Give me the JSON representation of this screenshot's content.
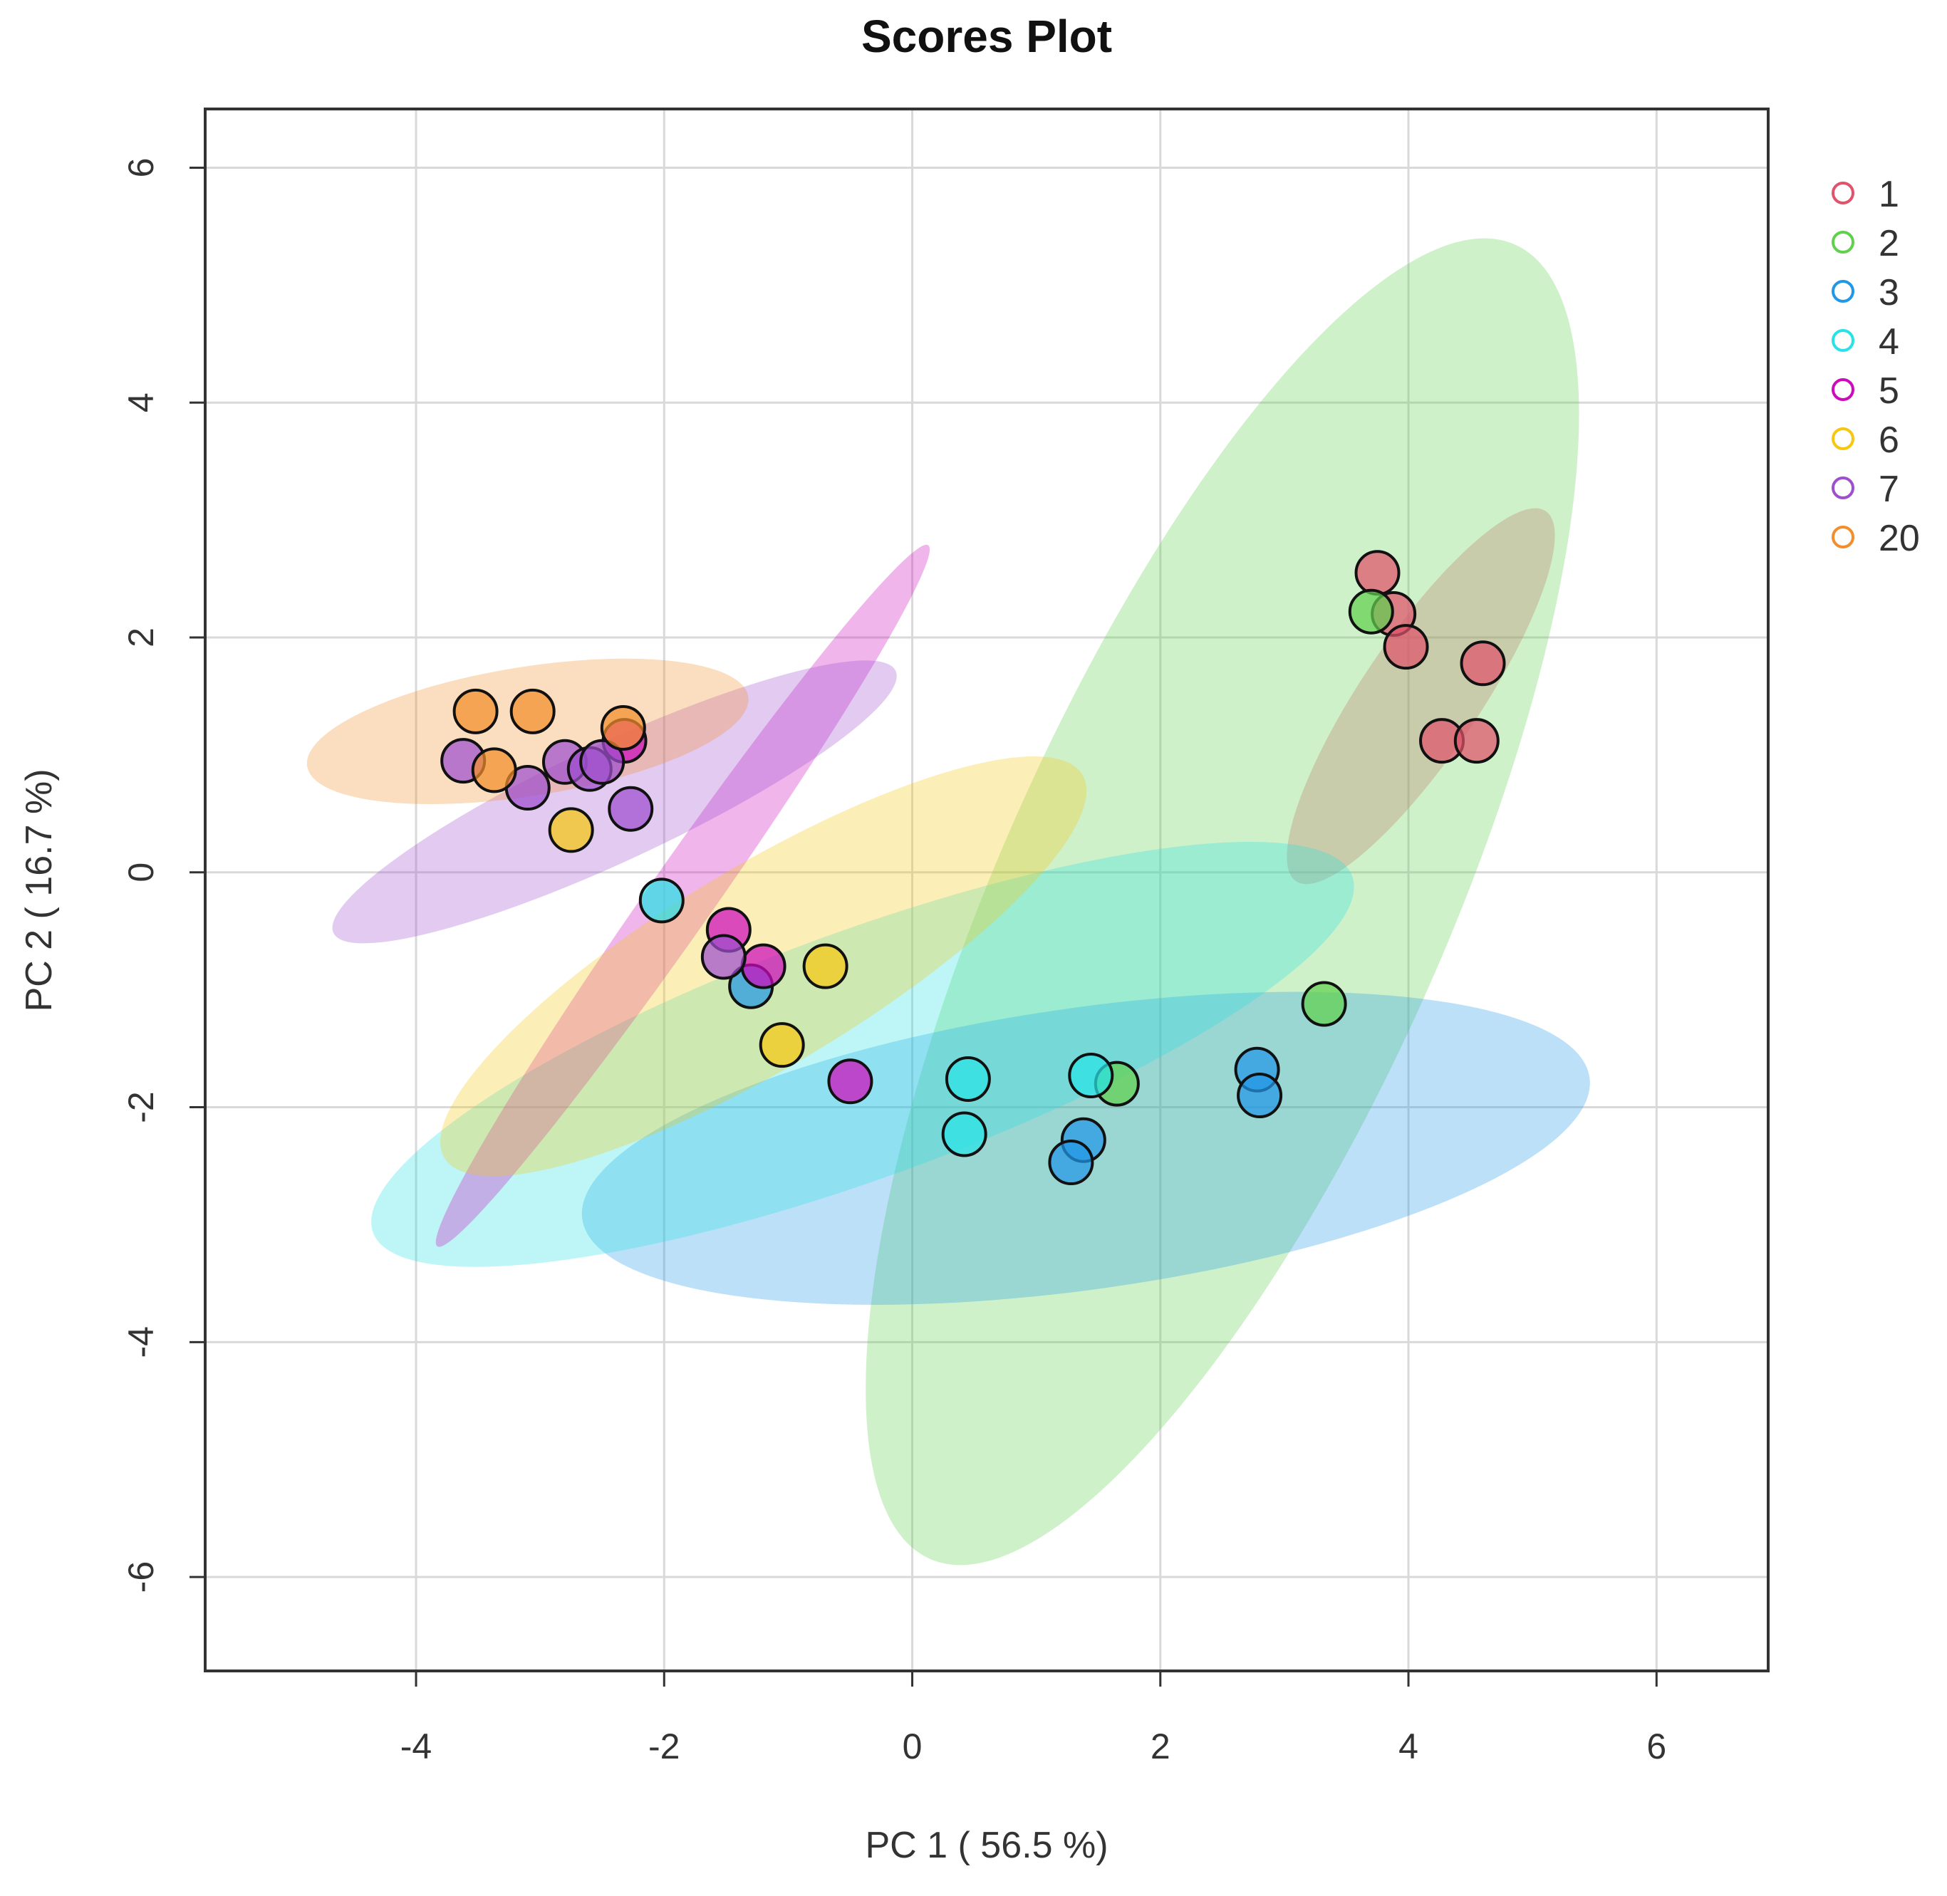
{
  "chart_data": {
    "type": "scatter",
    "title": "Scores Plot",
    "xlabel": "PC 1 ( 56.5 %)",
    "ylabel": "PC 2 ( 16.7 %)",
    "xlim": [
      -5.7,
      6.9
    ],
    "ylim": [
      -6.8,
      6.5
    ],
    "xticks": [
      -4,
      -2,
      0,
      2,
      4,
      6
    ],
    "yticks": [
      -6,
      -4,
      -2,
      0,
      2,
      4,
      6
    ],
    "xtick_labels": [
      "-4",
      "-2",
      "0",
      "2",
      "4",
      "6"
    ],
    "ytick_labels": [
      "-6",
      "-4",
      "-2",
      "0",
      "2",
      "4",
      "6"
    ],
    "grid": true,
    "legend_position": "top-right, outside plot",
    "series": [
      {
        "name": "1",
        "color": "#DF536B",
        "ellipse": {
          "cx": 4.1,
          "cy": 1.5,
          "rx": 1.8,
          "ry": 0.5,
          "angle": -56
        },
        "points": [
          [
            3.75,
            2.55
          ],
          [
            3.88,
            2.2
          ],
          [
            3.98,
            1.92
          ],
          [
            4.6,
            1.78
          ],
          [
            4.27,
            1.12
          ],
          [
            4.55,
            1.12
          ]
        ]
      },
      {
        "name": "2",
        "color": "#61D04F",
        "ellipse": {
          "cx": 2.5,
          "cy": -0.25,
          "rx": 5.8,
          "ry": 1.9,
          "angle": -66
        },
        "points": [
          [
            3.7,
            2.22
          ],
          [
            3.32,
            -1.12
          ],
          [
            1.65,
            -1.8
          ]
        ]
      },
      {
        "name": "3",
        "color": "#2297E6",
        "ellipse": {
          "cx": 1.4,
          "cy": -2.35,
          "rx": 4.1,
          "ry": 1.2,
          "angle": -8
        },
        "points": [
          [
            2.78,
            -1.68
          ],
          [
            2.8,
            -1.9
          ],
          [
            1.38,
            -2.28
          ],
          [
            1.28,
            -2.47
          ],
          [
            -1.3,
            -0.97
          ]
        ]
      },
      {
        "name": "4",
        "color": "#28E2E5",
        "ellipse": {
          "cx": -0.4,
          "cy": -1.55,
          "rx": 4.2,
          "ry": 1.05,
          "angle": -20
        },
        "points": [
          [
            -2.02,
            -0.24
          ],
          [
            0.45,
            -1.76
          ],
          [
            0.42,
            -2.23
          ],
          [
            1.44,
            -1.73
          ]
        ]
      },
      {
        "name": "5",
        "color": "#CD0BBC",
        "ellipse": {
          "cx": -1.85,
          "cy": -0.2,
          "rx": 3.45,
          "ry": 0.28,
          "angle": -55
        },
        "points": [
          [
            -2.32,
            1.12
          ],
          [
            -1.48,
            -0.49
          ],
          [
            -1.2,
            -0.8
          ],
          [
            -0.5,
            -1.78
          ]
        ]
      },
      {
        "name": "6",
        "color": "#F5C710",
        "ellipse": {
          "cx": -1.2,
          "cy": -0.8,
          "rx": 3.0,
          "ry": 0.85,
          "angle": -31
        },
        "points": [
          [
            -2.75,
            0.36
          ],
          [
            -0.7,
            -0.8
          ],
          [
            -1.05,
            -1.47
          ]
        ]
      },
      {
        "name": "7",
        "color": "#9E4FCF",
        "ellipse": {
          "cx": -2.4,
          "cy": 0.6,
          "rx": 2.5,
          "ry": 0.5,
          "angle": -25
        },
        "points": [
          [
            -3.62,
            0.95
          ],
          [
            -3.1,
            0.72
          ],
          [
            -2.8,
            0.94
          ],
          [
            -2.6,
            0.88
          ],
          [
            -2.5,
            0.94
          ],
          [
            -2.27,
            0.54
          ],
          [
            -1.52,
            -0.72
          ]
        ]
      },
      {
        "name": "20",
        "color": "#F28E2B",
        "ellipse": {
          "cx": -3.1,
          "cy": 1.2,
          "rx": 1.8,
          "ry": 0.55,
          "angle": -9
        },
        "points": [
          [
            -3.52,
            1.37
          ],
          [
            -3.06,
            1.37
          ],
          [
            -3.37,
            0.87
          ],
          [
            -2.33,
            1.23
          ]
        ]
      }
    ]
  }
}
